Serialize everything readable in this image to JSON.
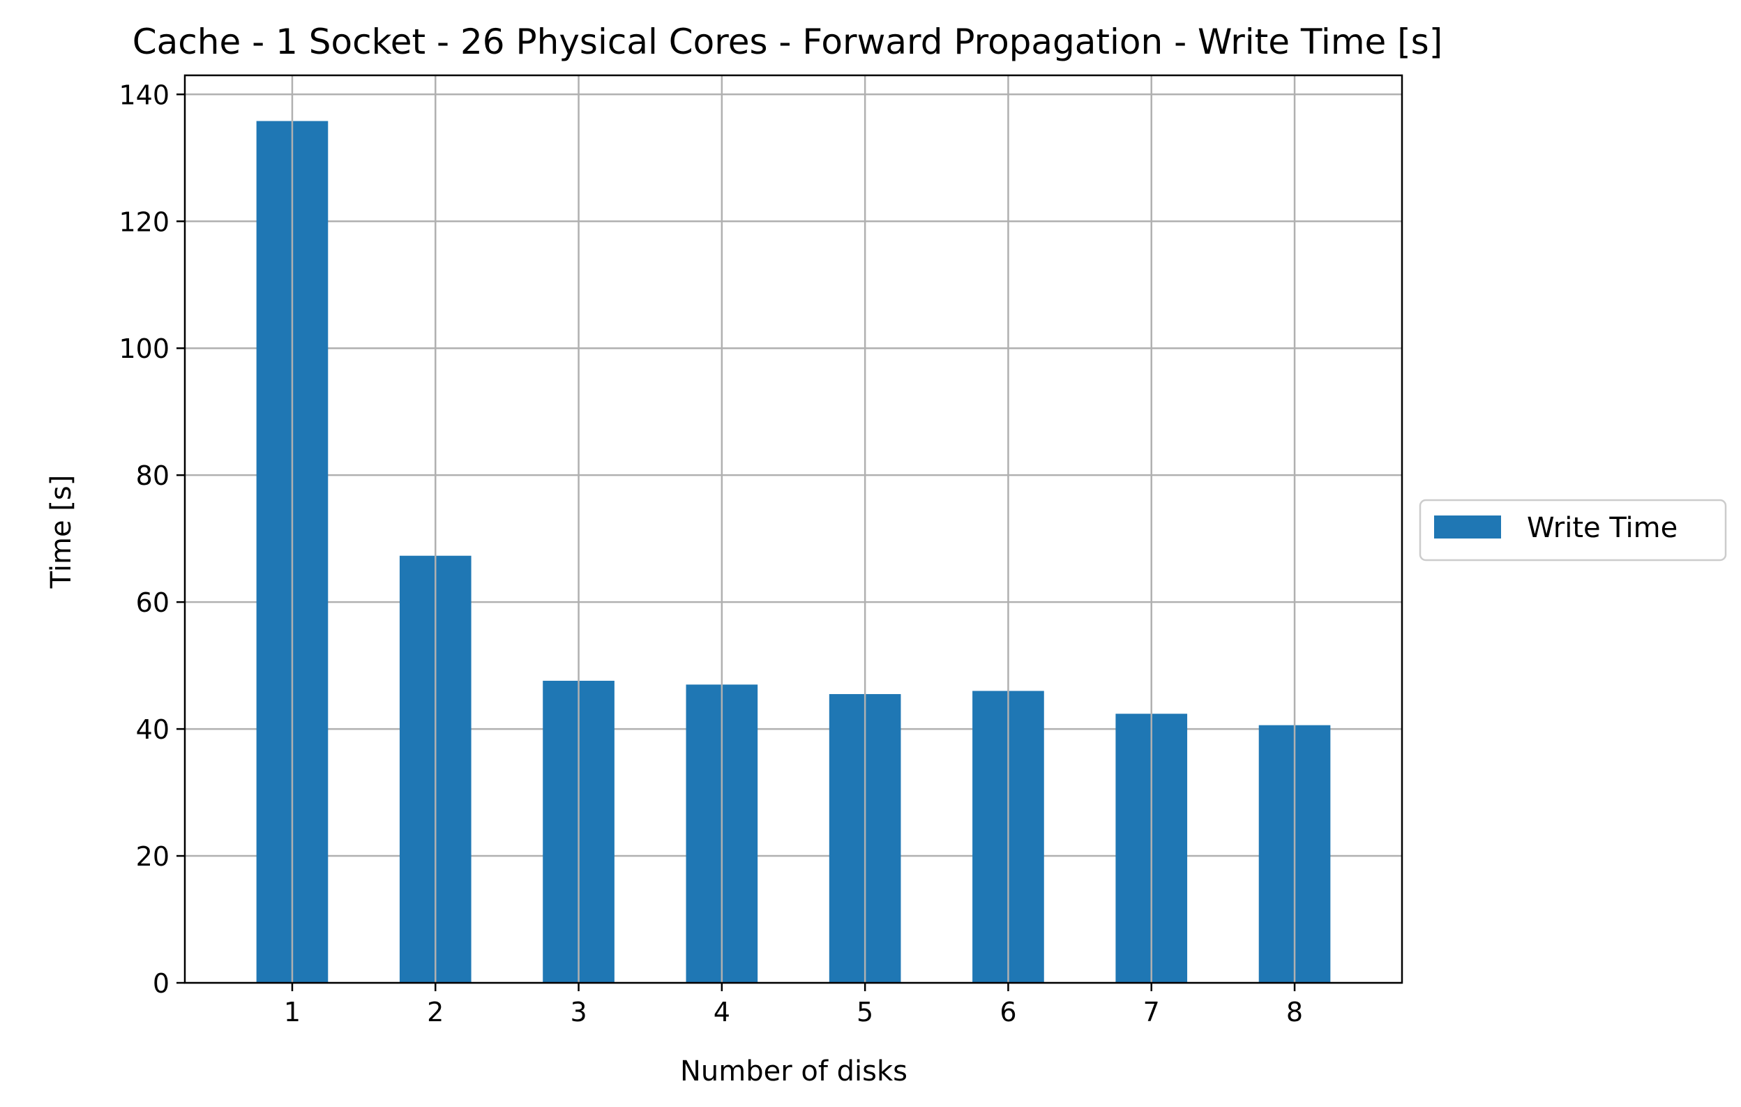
{
  "chart_data": {
    "type": "bar",
    "title": "Cache - 1 Socket - 26 Physical Cores - Forward Propagation - Write Time [s]",
    "xlabel": "Number of disks",
    "ylabel": "Time [s]",
    "categories": [
      "1",
      "2",
      "3",
      "4",
      "5",
      "6",
      "7",
      "8"
    ],
    "series": [
      {
        "name": "Write Time",
        "values": [
          135.8,
          67.3,
          47.6,
          47.0,
          45.5,
          46.0,
          42.4,
          40.6
        ],
        "color": "#1f77b4"
      }
    ],
    "ylim": [
      0,
      143
    ],
    "yticks": [
      0,
      20,
      40,
      60,
      80,
      100,
      120,
      140
    ],
    "grid": true,
    "legend_position": "center-right, outside plot"
  }
}
